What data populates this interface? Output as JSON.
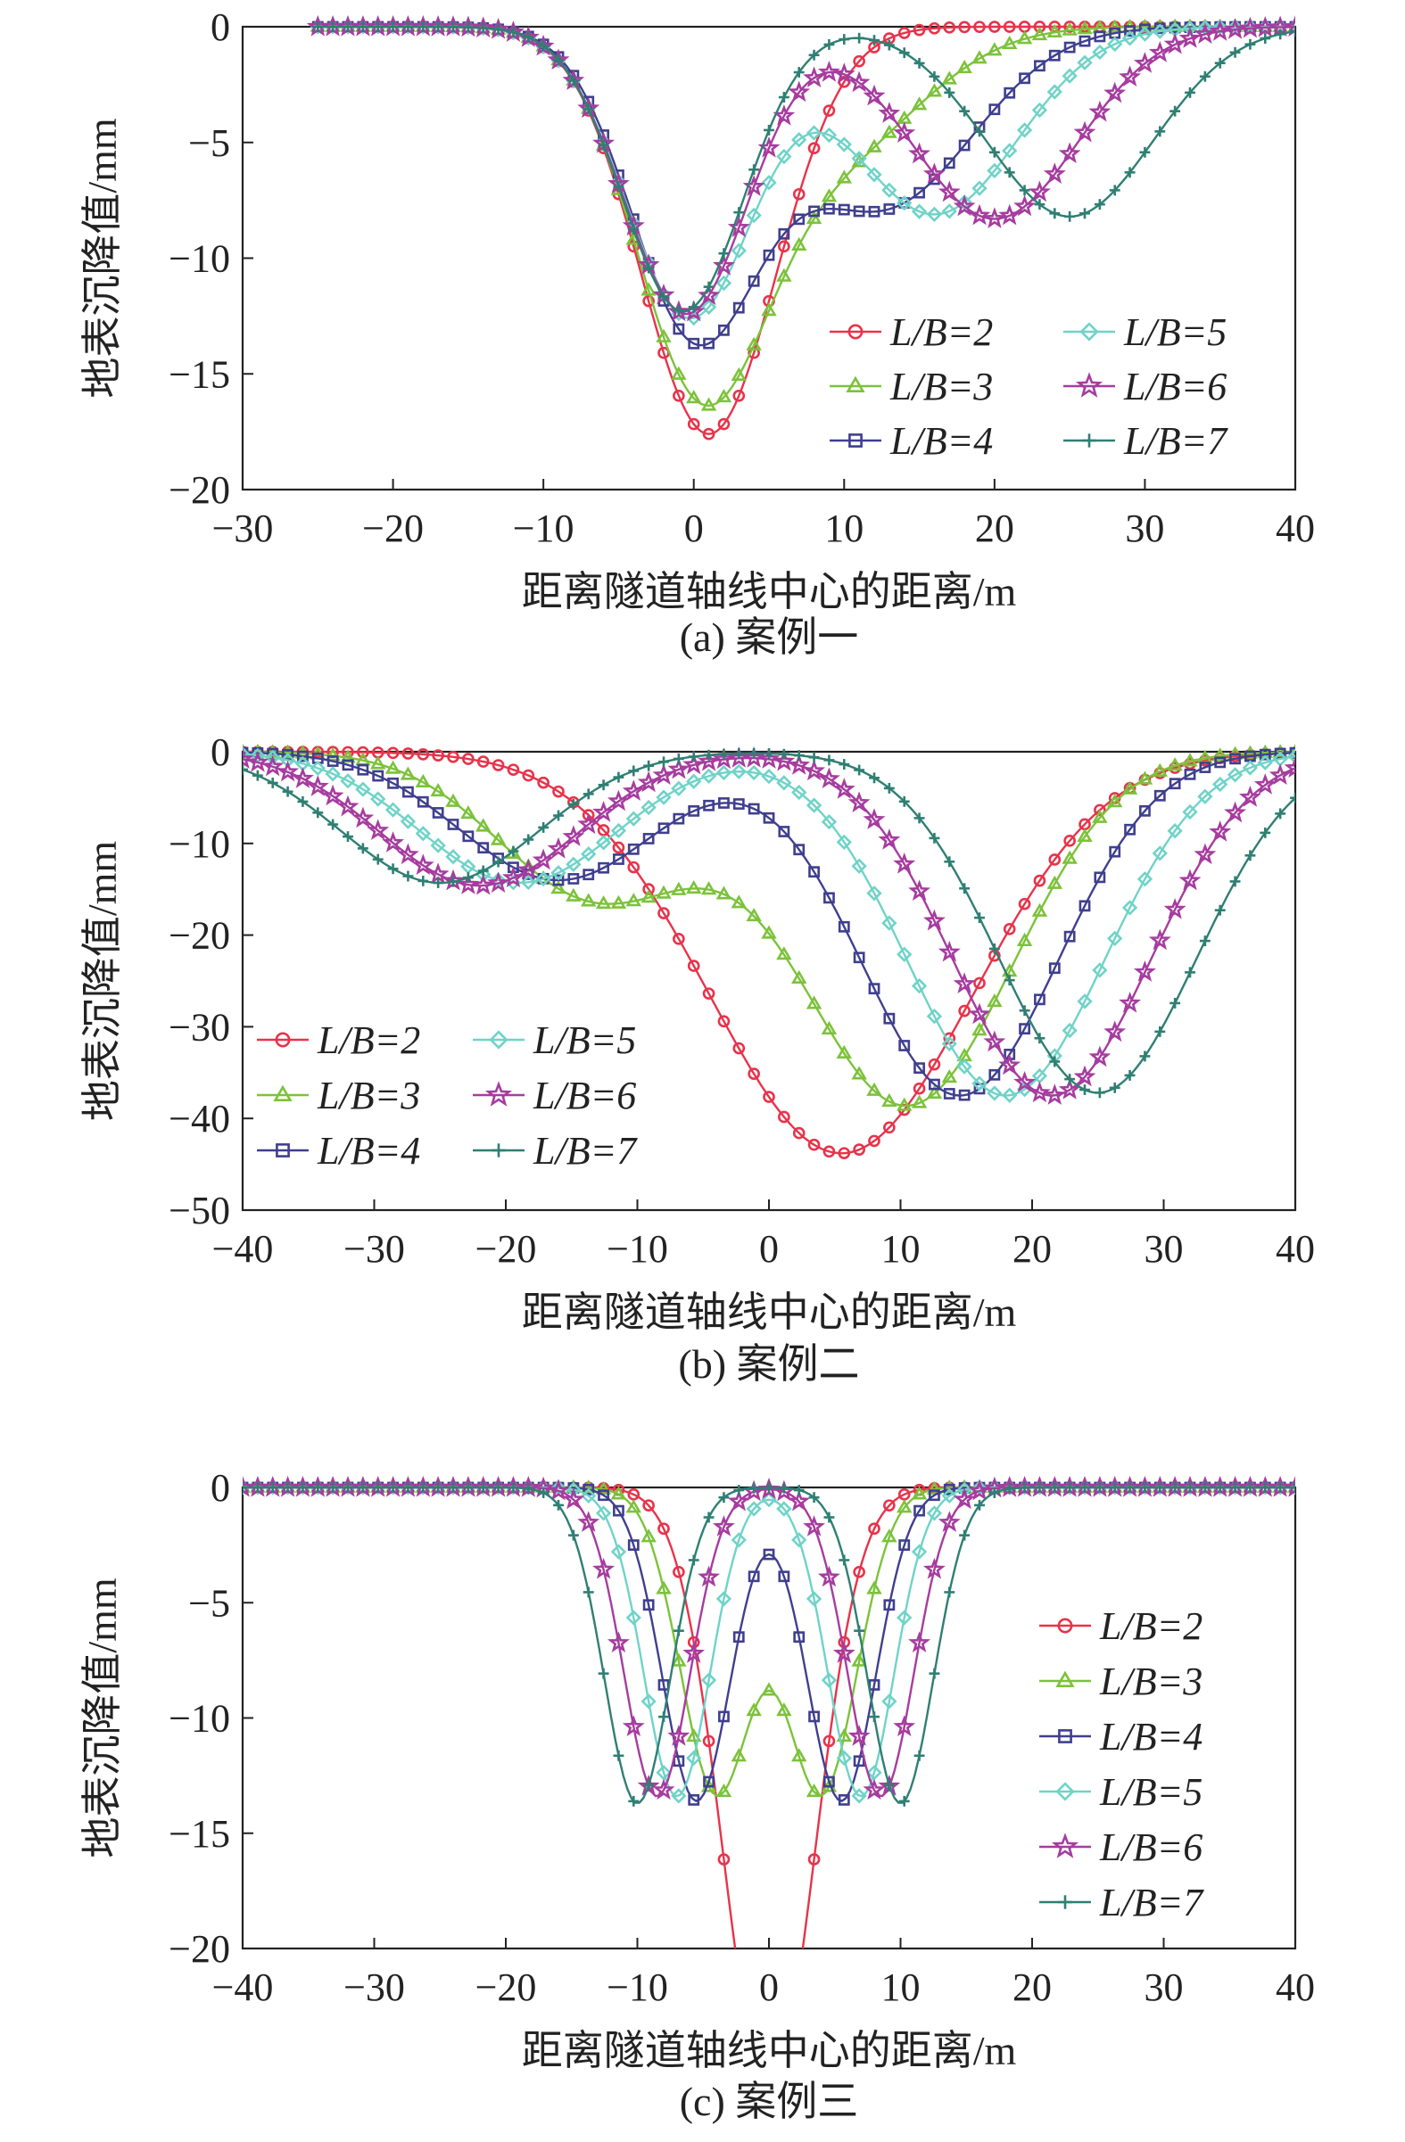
{
  "figure": {
    "captions": [
      "(a) 案例一",
      "(b) 案例二",
      "(c) 案例三"
    ]
  },
  "series_styles": [
    {
      "name": "L/B=2",
      "color": "#e8334a",
      "marker": "circle-marker"
    },
    {
      "name": "L/B=3",
      "color": "#7cc23a",
      "marker": "triangle-marker"
    },
    {
      "name": "L/B=4",
      "color": "#3f3f8f",
      "marker": "square-marker"
    },
    {
      "name": "L/B=5",
      "color": "#6fd3c8",
      "marker": "diamond-marker"
    },
    {
      "name": "L/B=6",
      "color": "#a63c9f",
      "marker": "star-marker"
    },
    {
      "name": "L/B=7",
      "color": "#2f7f73",
      "marker": "plus-marker"
    }
  ],
  "chart_data": [
    {
      "type": "line",
      "caption": "(a) 案例一",
      "xlabel": "距离隧道轴线中心的距离/m",
      "ylabel": "地表沉降值/mm",
      "xlim": [
        -30,
        40
      ],
      "ylim": [
        -20,
        0
      ],
      "xticks": [
        -30,
        -20,
        -10,
        0,
        10,
        20,
        30,
        40
      ],
      "yticks": [
        -20,
        -15,
        -10,
        -5,
        0
      ],
      "x_start": -25,
      "x_end": 40,
      "legend": "right-middle, 2 columns",
      "series": [
        {
          "name": "L/B=2",
          "troughs": [
            {
              "center": 1,
              "depth": -17.6,
              "width": 4.5
            }
          ]
        },
        {
          "name": "L/B=3",
          "troughs": [
            {
              "center": 0.3,
              "depth": -14.3,
              "width": 4.3
            },
            {
              "center": 9,
              "depth": -5.5,
              "width": 6
            }
          ]
        },
        {
          "name": "L/B=4",
          "troughs": [
            {
              "center": 0,
              "depth": -12.8,
              "width": 4.2
            },
            {
              "center": 12.5,
              "depth": -7.8,
              "width": 6
            }
          ]
        },
        {
          "name": "L/B=5",
          "troughs": [
            {
              "center": -0.3,
              "depth": -12.5,
              "width": 4.2
            },
            {
              "center": 16,
              "depth": -8.1,
              "width": 5.5
            }
          ]
        },
        {
          "name": "L/B=6",
          "troughs": [
            {
              "center": -0.5,
              "depth": -12.4,
              "width": 4.1
            },
            {
              "center": 20,
              "depth": -8.3,
              "width": 5.5
            }
          ]
        },
        {
          "name": "L/B=7",
          "troughs": [
            {
              "center": -0.7,
              "depth": -12.3,
              "width": 4
            },
            {
              "center": 25,
              "depth": -8.2,
              "width": 5.5
            }
          ]
        }
      ]
    },
    {
      "type": "line",
      "caption": "(b) 案例二",
      "xlabel": "距离隧道轴线中心的距离/m",
      "ylabel": "地表沉降值/mm",
      "xlim": [
        -40,
        40
      ],
      "ylim": [
        -50,
        0
      ],
      "xticks": [
        -40,
        -30,
        -20,
        -10,
        0,
        10,
        20,
        30,
        40
      ],
      "yticks": [
        -50,
        -40,
        -30,
        -20,
        -10,
        0
      ],
      "x_start": -40,
      "x_end": 40,
      "legend": "left-bottom, 2 columns",
      "series": [
        {
          "name": "L/B=2",
          "troughs": [
            {
              "center": 5.5,
              "depth": -43.8,
              "width": 10
            }
          ]
        },
        {
          "name": "L/B=3",
          "troughs": [
            {
              "center": -13,
              "depth": -16,
              "width": 7.5
            },
            {
              "center": 10.5,
              "depth": -38.5,
              "width": 8
            }
          ]
        },
        {
          "name": "L/B=4",
          "troughs": [
            {
              "center": -16,
              "depth": -14,
              "width": 7.5
            },
            {
              "center": 14.5,
              "depth": -37.5,
              "width": 7.5
            }
          ]
        },
        {
          "name": "L/B=5",
          "troughs": [
            {
              "center": -19,
              "depth": -14.3,
              "width": 7.5
            },
            {
              "center": 18,
              "depth": -37.5,
              "width": 7.5
            }
          ]
        },
        {
          "name": "L/B=6",
          "troughs": [
            {
              "center": -22,
              "depth": -14.6,
              "width": 7.5
            },
            {
              "center": 21.5,
              "depth": -37.5,
              "width": 7.5
            }
          ]
        },
        {
          "name": "L/B=7",
          "troughs": [
            {
              "center": -25,
              "depth": -14.3,
              "width": 7.5
            },
            {
              "center": 25,
              "depth": -37.2,
              "width": 7.5
            }
          ]
        }
      ]
    },
    {
      "type": "line",
      "caption": "(c) 案例三",
      "xlabel": "距离隧道轴线中心的距离/m",
      "ylabel": "地表沉降值/mm",
      "xlim": [
        -40,
        40
      ],
      "ylim": [
        -20,
        0
      ],
      "xticks": [
        -40,
        -30,
        -20,
        -10,
        0,
        10,
        20,
        30,
        40
      ],
      "yticks": [
        -20,
        -15,
        -10,
        -5,
        0
      ],
      "x_start": -40,
      "x_end": 40,
      "legend": "right-middle, 1 column",
      "series": [
        {
          "name": "L/B=2",
          "troughs": [
            {
              "center": -1,
              "depth": -13.8,
              "width": 3.3
            },
            {
              "center": 1,
              "depth": -13.8,
              "width": 3.3
            }
          ]
        },
        {
          "name": "L/B=3",
          "troughs": [
            {
              "center": -4,
              "depth": -13.2,
              "width": 2.7
            },
            {
              "center": 4,
              "depth": -13.2,
              "width": 2.7
            }
          ]
        },
        {
          "name": "L/B=4",
          "troughs": [
            {
              "center": -5.5,
              "depth": -13.6,
              "width": 2.6
            },
            {
              "center": 5.5,
              "depth": -13.6,
              "width": 2.6
            }
          ]
        },
        {
          "name": "L/B=5",
          "troughs": [
            {
              "center": -7,
              "depth": -13.4,
              "width": 2.5
            },
            {
              "center": 7,
              "depth": -13.4,
              "width": 2.5
            }
          ]
        },
        {
          "name": "L/B=6",
          "troughs": [
            {
              "center": -8.5,
              "depth": -13.4,
              "width": 2.5
            },
            {
              "center": 8.5,
              "depth": -13.4,
              "width": 2.5
            }
          ]
        },
        {
          "name": "L/B=7",
          "troughs": [
            {
              "center": -10,
              "depth": -13.7,
              "width": 2.5
            },
            {
              "center": 10,
              "depth": -13.7,
              "width": 2.5
            }
          ]
        }
      ]
    }
  ]
}
